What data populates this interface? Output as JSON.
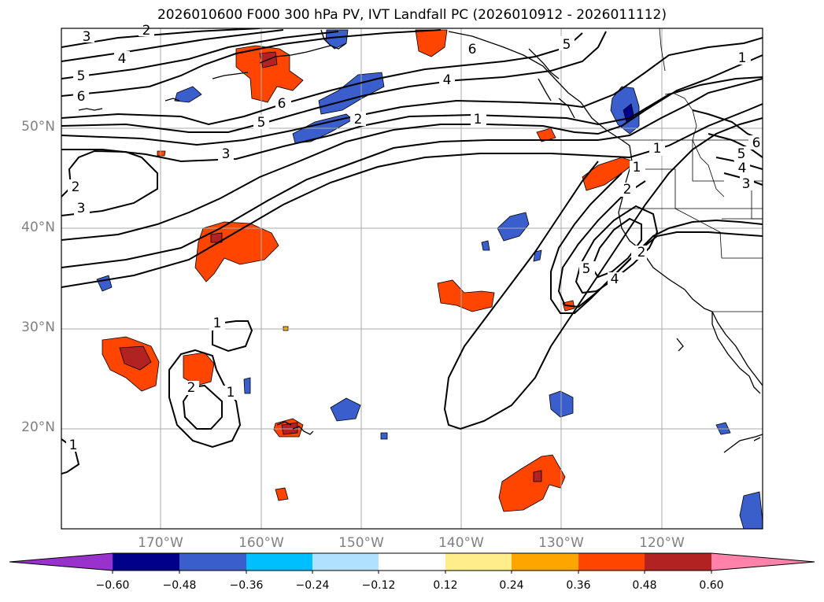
{
  "title": "2026010600 F000 300 hPa PV, IVT Landfall PC (2026010912 - 2026011112)",
  "map": {
    "lat_labels": [
      "50°N",
      "40°N",
      "30°N",
      "20°N"
    ],
    "lon_labels": [
      "170°W",
      "160°W",
      "150°W",
      "140°W",
      "130°W",
      "120°W"
    ],
    "extent": {
      "lon_min": -180,
      "lon_max": -110,
      "lat_min": 10,
      "lat_max": 60
    }
  },
  "colorbar": {
    "ticks": [
      "−0.60",
      "−0.48",
      "−0.36",
      "−0.24",
      "−0.12",
      "0.12",
      "0.24",
      "0.36",
      "0.48",
      "0.60"
    ],
    "colors": [
      "#9932cc",
      "#00008b",
      "#3a5fcd",
      "#00bfff",
      "#b0e2ff",
      "#ffffff",
      "#ffec8b",
      "#ffa500",
      "#ff4500",
      "#b22222",
      "#ff82ab"
    ]
  },
  "contour_labels": [
    "3",
    "2",
    "4",
    "5",
    "6",
    "6",
    "5",
    "4",
    "2",
    "1",
    "6",
    "5",
    "1",
    "3",
    "2",
    "3",
    "1",
    "2",
    "5",
    "4",
    "1",
    "2",
    "1",
    "1",
    "2",
    "1",
    "5",
    "4",
    "6",
    "3"
  ]
}
